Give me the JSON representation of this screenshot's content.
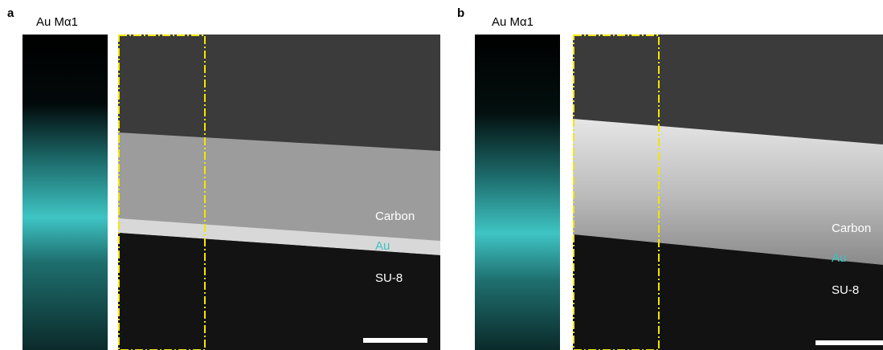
{
  "panels": [
    {
      "label": "a",
      "map_title": "Au Mα1",
      "layers": [
        "Carbon",
        "Au",
        "SU-8"
      ]
    },
    {
      "label": "b",
      "map_title": "Au Mα1",
      "layers": [
        "Carbon",
        "Au",
        "SU-8"
      ]
    }
  ]
}
